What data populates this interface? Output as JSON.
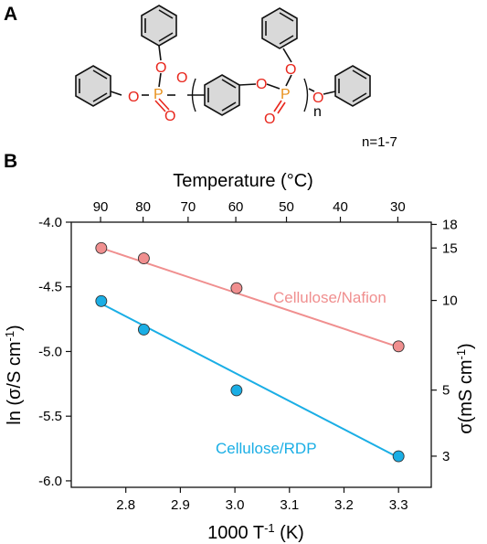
{
  "panel_a": {
    "label": "A",
    "atom_O": "O",
    "atom_P": "P",
    "repeat_n": "n",
    "n_range": "n=1-7"
  },
  "panel_b": {
    "label": "B"
  },
  "colors": {
    "nafion": "#f08f8f",
    "rdp": "#1aaee5",
    "oxygen": "#e8261c",
    "phosphorus": "#e8901a",
    "ring_fill": "#d9d9d9"
  },
  "chart_data": {
    "type": "scatter",
    "title": "",
    "xlabel": "1000 T",
    "xlabel_sup": "-1",
    "xlabel_unit": " (K)",
    "ylabel": "ln (σ/S cm",
    "ylabel_sup": "-1",
    "ylabel_end": ")",
    "top_axis_label": "Temperature (°C)",
    "right_axis_label": "σ(mS cm",
    "right_axis_sup": "-1",
    "right_axis_end": ")",
    "xlim": [
      2.7,
      3.36
    ],
    "ylim": [
      -6.05,
      -4.0
    ],
    "x_ticks": [
      2.8,
      2.9,
      3.0,
      3.1,
      3.2,
      3.3
    ],
    "x_tick_labels": [
      "2.8",
      "2.9",
      "3.0",
      "3.1",
      "3.2",
      "3.3"
    ],
    "y_ticks": [
      -4.0,
      -4.5,
      -5.0,
      -5.5,
      -6.0
    ],
    "y_tick_labels": [
      "-4.0",
      "-4.5",
      "-5.0",
      "-5.5",
      "-6.0"
    ],
    "top_ticks": [
      90,
      80,
      70,
      60,
      50,
      40,
      30
    ],
    "top_tick_labels": [
      "90",
      "80",
      "70",
      "60",
      "50",
      "40",
      "30"
    ],
    "right_ticks": [
      18,
      15,
      10,
      5,
      3
    ],
    "right_tick_labels": [
      "18",
      "15",
      "10",
      "5",
      "3"
    ],
    "grid": false,
    "series": [
      {
        "name": "Cellulose/Nafion",
        "color": "#f08f8f",
        "x": [
          2.755,
          2.833,
          3.003,
          3.3
        ],
        "y": [
          -4.2,
          -4.28,
          -4.51,
          -4.96
        ],
        "fit": [
          [
            2.755,
            -4.2
          ],
          [
            3.3,
            -4.965
          ]
        ]
      },
      {
        "name": "Cellulose/RDP",
        "color": "#1aaee5",
        "x": [
          2.755,
          2.833,
          3.003,
          3.3
        ],
        "y": [
          -4.61,
          -4.83,
          -5.3,
          -5.81
        ],
        "fit": [
          [
            2.755,
            -4.63
          ],
          [
            3.3,
            -5.82
          ]
        ]
      }
    ]
  }
}
